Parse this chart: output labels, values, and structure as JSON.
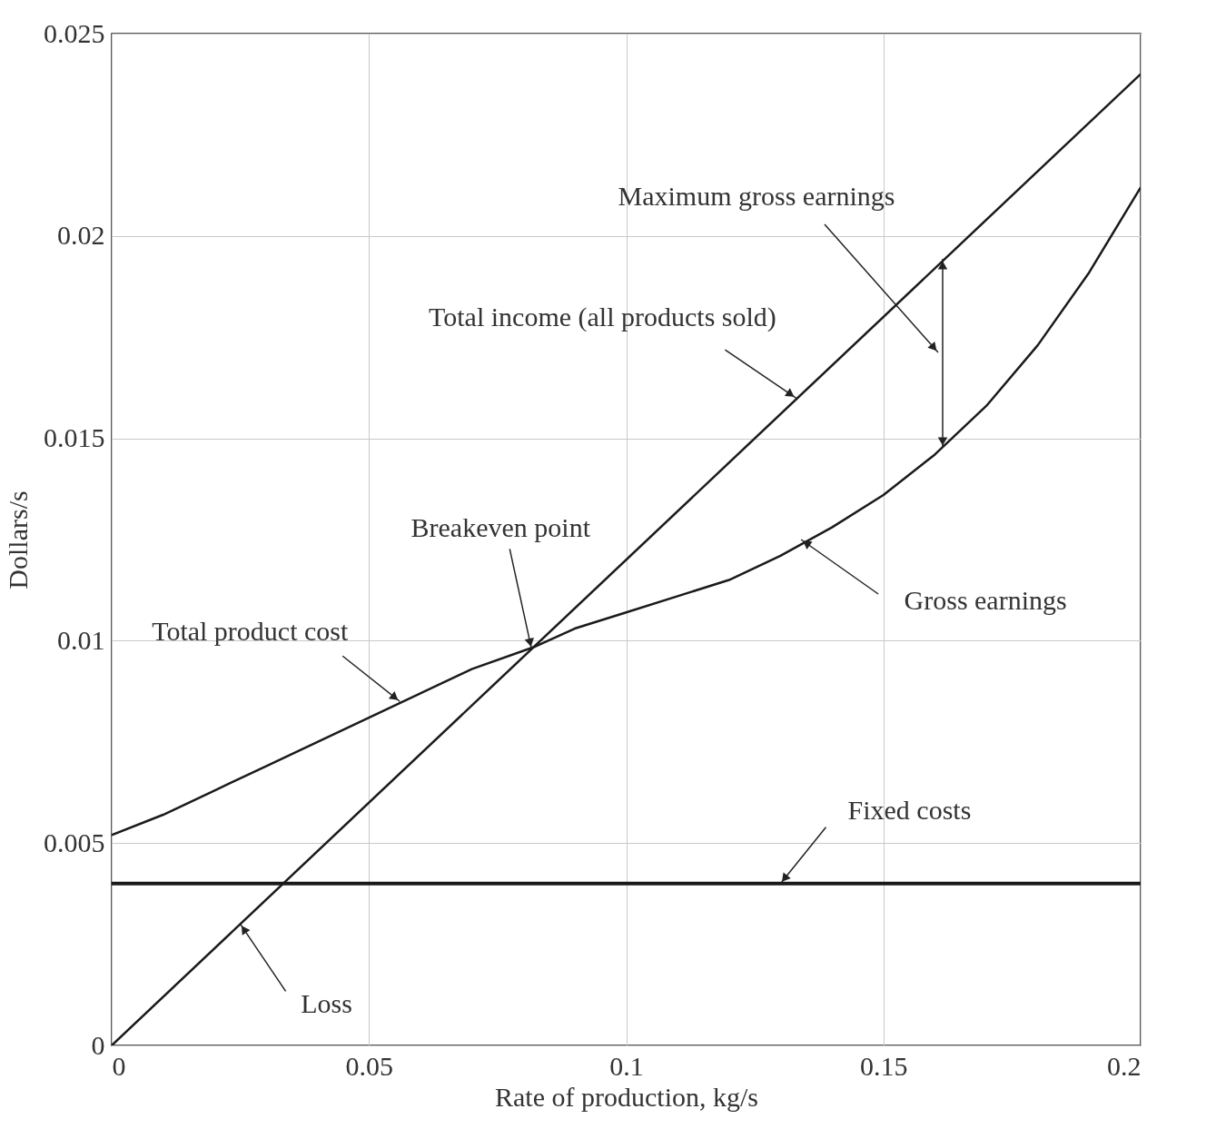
{
  "chart_data": {
    "type": "line",
    "xlabel": "Rate of production, kg/s",
    "ylabel": "Dollars/s",
    "xlim": [
      0,
      0.2
    ],
    "ylim": [
      0,
      0.025
    ],
    "xticks": [
      0,
      0.05,
      0.1,
      0.15,
      0.2
    ],
    "yticks": [
      0,
      0.005,
      0.01,
      0.015,
      0.02,
      0.025
    ],
    "grid": true,
    "series": [
      {
        "color": "#1a1a1a",
        "x": [
          0,
          0.2
        ],
        "values": [
          0,
          0.024
        ]
      },
      {
        "color": "#1a1a1a",
        "x": [
          0,
          0.01,
          0.02,
          0.03,
          0.04,
          0.05,
          0.06,
          0.07,
          0.082,
          0.09,
          0.1,
          0.11,
          0.12,
          0.13,
          0.14,
          0.15,
          0.16,
          0.17,
          0.18,
          0.19,
          0.2
        ],
        "values": [
          0.0052,
          0.0057,
          0.0063,
          0.0069,
          0.0075,
          0.0081,
          0.0087,
          0.0093,
          0.00984,
          0.0103,
          0.0107,
          0.0111,
          0.0115,
          0.0121,
          0.0128,
          0.0136,
          0.0146,
          0.0158,
          0.0173,
          0.0191,
          0.0212
        ]
      },
      {
        "color": "#1a1a1a",
        "x": [
          0,
          0.2
        ],
        "values": [
          0.004,
          0.004
        ]
      }
    ],
    "annotations": [
      "Maximum gross earnings",
      {
        "text": "Total income (all products sold)",
        "x": 0.133,
        "y": 0.016
      },
      {
        "text": "Breakeven point",
        "x": 0.0816,
        "y": 0.0098
      },
      {
        "text": "Gross earnings",
        "x": 0.134,
        "y": 0.0125
      },
      {
        "text": "Total product cost",
        "x": 0.056,
        "y": 0.0085
      },
      {
        "text": "Fixed costs",
        "x": 0.13,
        "y": 0.004
      },
      {
        "text": "Loss",
        "x": 0.025,
        "y": 0.003
      }
    ]
  }
}
